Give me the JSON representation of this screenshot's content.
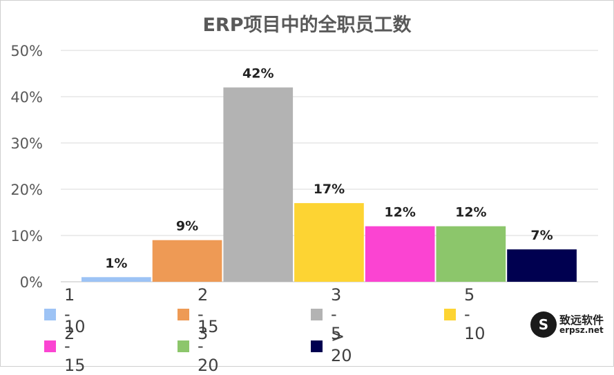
{
  "chart_data": {
    "type": "bar",
    "title": "ERP项目中的全职员工数",
    "categories": [
      "1 - 2",
      "2 - 3",
      "3 - 5",
      "5 - 10",
      "10 - 15",
      "15 - 20",
      "> 20"
    ],
    "series": [
      {
        "values": [
          1,
          9,
          42,
          17,
          12,
          12,
          7
        ]
      }
    ],
    "data_labels": [
      "1%",
      "9%",
      "42%",
      "17%",
      "12%",
      "12%",
      "7%"
    ],
    "colors": [
      "#9dc3f5",
      "#ee9a55",
      "#b3b3b3",
      "#fdd433",
      "#fb44d2",
      "#8cc66b",
      "#000050"
    ],
    "ylim": [
      0,
      50
    ],
    "yticks": [
      "0%",
      "10%",
      "20%",
      "30%",
      "40%",
      "50%"
    ],
    "grid": true,
    "legend_position": "bottom"
  },
  "watermark": {
    "logo": "S",
    "name": "致远软件",
    "url": "erpsz.net"
  }
}
